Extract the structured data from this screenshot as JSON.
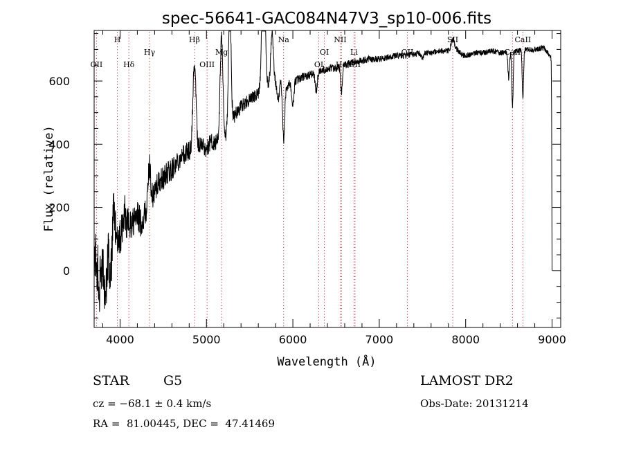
{
  "chart_data": {
    "type": "line",
    "title": "spec-56641-GAC084N47V3_sp10-006.fits",
    "xlabel": "Wavelength (Å)",
    "ylabel": "Flux (relative)",
    "xlim": [
      3700,
      9100
    ],
    "ylim": [
      -180,
      760
    ],
    "x_ticks": [
      4000,
      5000,
      6000,
      7000,
      8000,
      9000
    ],
    "y_ticks": [
      0,
      200,
      400,
      600
    ],
    "x_tick_labels": [
      "4000",
      "5000",
      "6000",
      "7000",
      "8000",
      "9000"
    ],
    "y_tick_labels": [
      "0",
      "200",
      "400",
      "600"
    ],
    "grid": false,
    "line_color": "#000000",
    "marker_color": "#c03030",
    "spectral_lines": [
      {
        "label": "OII",
        "x": 3727,
        "tier": 3
      },
      {
        "label": "H",
        "x": 3969,
        "tier": 0
      },
      {
        "label": "Hδ",
        "x": 4102,
        "tier": 3
      },
      {
        "label": "Hγ",
        "x": 4341,
        "tier": 1
      },
      {
        "label": "Hβ",
        "x": 4861,
        "tier": 0
      },
      {
        "label": "OIII",
        "x": 5007,
        "tier": 3
      },
      {
        "label": "Mg",
        "x": 5175,
        "tier": 1
      },
      {
        "label": "Na",
        "x": 5893,
        "tier": 0
      },
      {
        "label": "OI",
        "x": 6300,
        "tier": 3
      },
      {
        "label": "OI",
        "x": 6364,
        "tier": 1
      },
      {
        "label": "NII",
        "x": 6548,
        "tier": 0
      },
      {
        "label": "Hα",
        "x": 6563,
        "tier": 3
      },
      {
        "label": "Li",
        "x": 6708,
        "tier": 2
      },
      {
        "label": "SII",
        "x": 6720,
        "tier": 3
      },
      {
        "label": "OII",
        "x": 7325,
        "tier": 1
      },
      {
        "label": "SII",
        "x": 7850,
        "tier": 0
      },
      {
        "label": "CaII",
        "x": 8542,
        "tier": 1
      },
      {
        "label": "CaII",
        "x": 8662,
        "tier": 0
      }
    ],
    "anchors": [
      [
        3700,
        60
      ],
      [
        3720,
        20
      ],
      [
        3750,
        -60
      ],
      [
        3780,
        -20
      ],
      [
        3800,
        30
      ],
      [
        3850,
        70
      ],
      [
        3900,
        80
      ],
      [
        3950,
        110
      ],
      [
        4000,
        110
      ],
      [
        4050,
        130
      ],
      [
        4100,
        150
      ],
      [
        4150,
        150
      ],
      [
        4200,
        170
      ],
      [
        4250,
        150
      ],
      [
        4300,
        190
      ],
      [
        4350,
        210
      ],
      [
        4400,
        250
      ],
      [
        4450,
        280
      ],
      [
        4500,
        290
      ],
      [
        4550,
        310
      ],
      [
        4600,
        320
      ],
      [
        4650,
        340
      ],
      [
        4700,
        360
      ],
      [
        4750,
        370
      ],
      [
        4800,
        380
      ],
      [
        4850,
        360
      ],
      [
        4900,
        390
      ],
      [
        4950,
        400
      ],
      [
        5000,
        380
      ],
      [
        5050,
        410
      ],
      [
        5100,
        400
      ],
      [
        5150,
        420
      ],
      [
        5200,
        390
      ],
      [
        5250,
        450
      ],
      [
        5300,
        480
      ],
      [
        5350,
        500
      ],
      [
        5400,
        520
      ],
      [
        5450,
        530
      ],
      [
        5500,
        540
      ],
      [
        5550,
        550
      ],
      [
        5600,
        560
      ],
      [
        5650,
        570
      ],
      [
        5700,
        580
      ],
      [
        5750,
        610
      ],
      [
        5800,
        600
      ],
      [
        5850,
        610
      ],
      [
        5900,
        570
      ],
      [
        5950,
        590
      ],
      [
        6000,
        600
      ],
      [
        6100,
        610
      ],
      [
        6200,
        620
      ],
      [
        6300,
        630
      ],
      [
        6400,
        640
      ],
      [
        6500,
        640
      ],
      [
        6600,
        650
      ],
      [
        6700,
        660
      ],
      [
        6800,
        665
      ],
      [
        6900,
        670
      ],
      [
        7000,
        670
      ],
      [
        7100,
        675
      ],
      [
        7200,
        680
      ],
      [
        7300,
        680
      ],
      [
        7400,
        685
      ],
      [
        7500,
        690
      ],
      [
        7600,
        690
      ],
      [
        7700,
        695
      ],
      [
        7800,
        695
      ],
      [
        7850,
        710
      ],
      [
        7900,
        700
      ],
      [
        7950,
        685
      ],
      [
        8000,
        680
      ],
      [
        8100,
        690
      ],
      [
        8200,
        690
      ],
      [
        8300,
        695
      ],
      [
        8400,
        690
      ],
      [
        8500,
        690
      ],
      [
        8600,
        695
      ],
      [
        8700,
        700
      ],
      [
        8800,
        700
      ],
      [
        8900,
        705
      ],
      [
        8950,
        690
      ],
      [
        8990,
        670
      ]
    ],
    "features": [
      [
        3830,
        -150,
        14
      ],
      [
        3890,
        -100,
        14
      ],
      [
        3925,
        90,
        12
      ],
      [
        4050,
        60,
        12
      ],
      [
        4340,
        130,
        14
      ],
      [
        4860,
        290,
        18
      ],
      [
        5175,
        330,
        16
      ],
      [
        5270,
        400,
        14
      ],
      [
        5660,
        450,
        18
      ],
      [
        5760,
        150,
        14
      ],
      [
        5830,
        -70,
        14
      ],
      [
        5893,
        -160,
        12
      ],
      [
        6000,
        -80,
        12
      ],
      [
        6270,
        -60,
        12
      ],
      [
        6563,
        -80,
        10
      ],
      [
        7500,
        -20,
        14
      ],
      [
        7850,
        20,
        18
      ],
      [
        8498,
        -80,
        9
      ],
      [
        8542,
        -170,
        8
      ],
      [
        8662,
        -150,
        8
      ]
    ],
    "noise": [
      [
        3700,
        190
      ],
      [
        4000,
        120
      ],
      [
        4400,
        80
      ],
      [
        5000,
        55
      ],
      [
        5500,
        40
      ],
      [
        6000,
        30
      ],
      [
        7000,
        20
      ],
      [
        8000,
        18
      ],
      [
        9000,
        18
      ]
    ],
    "bottom_left": {
      "object_type": "STAR",
      "subclass": "G5",
      "redshift": "cz = −68.1 ± 0.4 km/s",
      "coords": "RA =  81.00445, DEC =  47.41469"
    },
    "bottom_right": {
      "survey": "LAMOST DR2",
      "obs_date": "Obs-Date: 20131214"
    }
  }
}
